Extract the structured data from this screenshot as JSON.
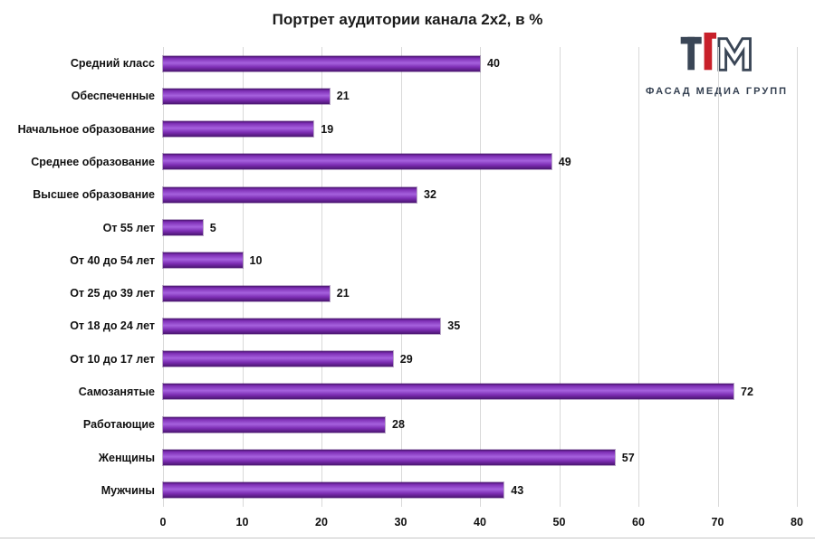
{
  "title": "Портрет аудитории канала 2х2, в %",
  "logo": {
    "text": "ФАСАД МЕДИА ГРУПП",
    "icon": "fasad-media-group-logo"
  },
  "colors": {
    "bar_dark": "#4A1570",
    "bar_mid": "#7D2EB4",
    "bar_light": "#A661DE",
    "grid": "#D9D9D9",
    "text": "#111111",
    "logo_text": "#333F50",
    "logo_red": "#C8202A"
  },
  "chart_data": {
    "type": "bar",
    "orientation": "horizontal",
    "title": "Портрет аудитории канала 2х2, в %",
    "categories": [
      "Средний класс",
      "Обеспеченные",
      "Начальное образование",
      "Среднее образование",
      "Высшее образование",
      "От 55 лет",
      "От 40 до 54 лет",
      "От 25 до 39 лет",
      "От 18 до 24 лет",
      "От 10 до 17 лет",
      "Самозанятые",
      "Работающие",
      "Женщины",
      "Мужчины"
    ],
    "values": [
      40,
      21,
      19,
      49,
      32,
      5,
      10,
      21,
      35,
      29,
      72,
      28,
      57,
      43
    ],
    "xlim": [
      0,
      80
    ],
    "x_ticks": [
      0,
      10,
      20,
      30,
      40,
      50,
      60,
      70,
      80
    ],
    "xlabel": "",
    "ylabel": "",
    "grid": true,
    "value_labels": true,
    "legend": "none"
  }
}
